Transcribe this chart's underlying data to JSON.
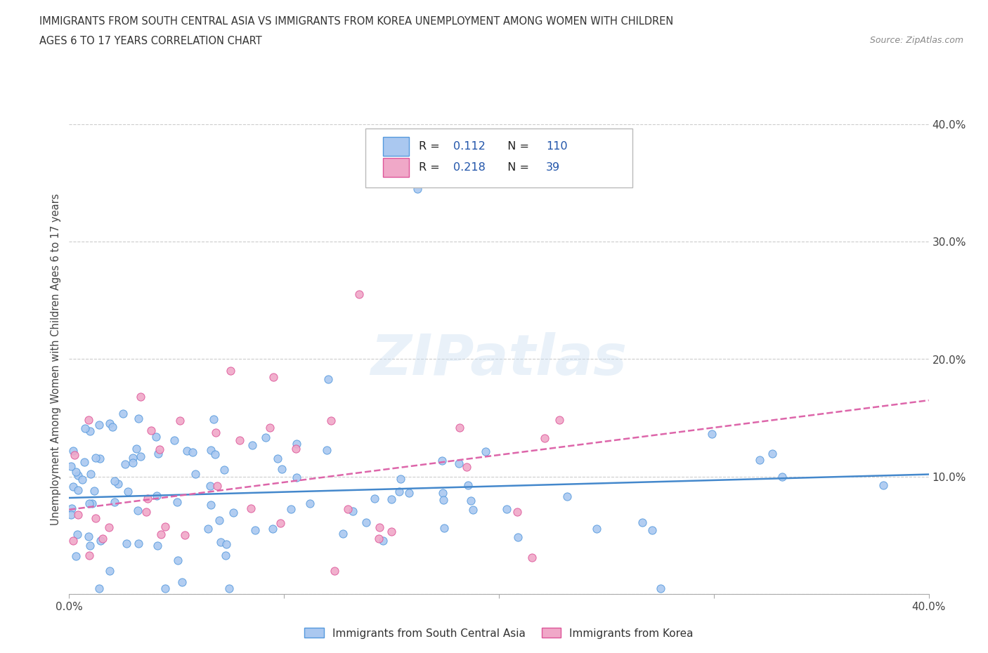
{
  "title_line1": "IMMIGRANTS FROM SOUTH CENTRAL ASIA VS IMMIGRANTS FROM KOREA UNEMPLOYMENT AMONG WOMEN WITH CHILDREN",
  "title_line2": "AGES 6 TO 17 YEARS CORRELATION CHART",
  "source": "Source: ZipAtlas.com",
  "ylabel": "Unemployment Among Women with Children Ages 6 to 17 years",
  "xlim": [
    0.0,
    0.4
  ],
  "ylim": [
    0.0,
    0.4
  ],
  "R_blue": 0.112,
  "N_blue": 110,
  "R_pink": 0.218,
  "N_pink": 39,
  "color_blue": "#aac8f0",
  "color_pink": "#f0a8c8",
  "edge_blue": "#5599dd",
  "edge_pink": "#dd5599",
  "line_color_blue": "#4488cc",
  "line_color_pink": "#dd66aa",
  "watermark": "ZIPatlas",
  "legend_label_blue": "Immigrants from South Central Asia",
  "legend_label_pink": "Immigrants from Korea",
  "grid_color": "#cccccc",
  "bg_color": "#ffffff",
  "legend_text_color": "#2255aa"
}
